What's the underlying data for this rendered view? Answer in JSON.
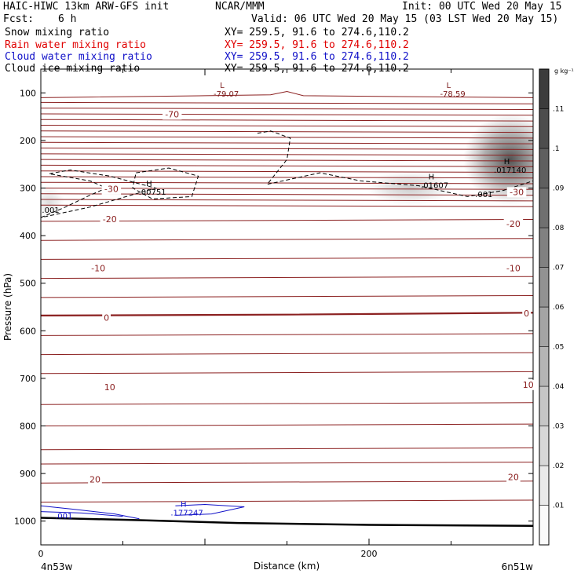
{
  "header": {
    "model": "HAIC-HIWC 13km ARW-GFS init",
    "org": "NCAR/MMM",
    "init": "Init: 00 UTC Wed 20 May 15",
    "fcst_label": "Fcst:",
    "fcst_value": "6 h",
    "valid": "Valid: 06 UTC Wed 20 May 15 (03 LST Wed 20 May 15)",
    "fields": [
      {
        "name": "Snow mixing ratio",
        "xy": "XY= 259.5, 91.6 to 274.6,110.2",
        "color": "#000000"
      },
      {
        "name": "Rain water mixing ratio",
        "xy": "XY= 259.5, 91.6 to 274.6,110.2",
        "color": "#e00000"
      },
      {
        "name": "Cloud water mixing ratio",
        "xy": "XY= 259.5, 91.6 to 274.6,110.2",
        "color": "#1010c8"
      },
      {
        "name": "Cloud ice mixing ratio",
        "xy": "XY= 259.5, 91.6 to 274.6,110.2",
        "color": "#000000"
      }
    ]
  },
  "chart_data": {
    "type": "heatmap",
    "xlabel": "Distance (km)",
    "ylabel": "Pressure (hPa)",
    "xlim": [
      0,
      300
    ],
    "ylim": [
      1050,
      50
    ],
    "x_ticks": [
      0,
      200
    ],
    "y_ticks": [
      100,
      200,
      300,
      400,
      500,
      600,
      700,
      800,
      900,
      1000
    ],
    "x_endpoints": {
      "left": "4n53w",
      "right": "6n51w"
    },
    "colorbar": {
      "unit": "g kg⁻¹",
      "ticks": [
        ".01",
        ".02",
        ".03",
        ".04",
        ".05",
        ".06",
        ".07",
        ".08",
        ".09",
        ".1",
        ".11"
      ],
      "max": 0.12
    },
    "temperature_contour_labels": [
      {
        "text": "-70",
        "x": 80,
        "p": 145
      },
      {
        "text": "-30",
        "x": 43,
        "p": 302
      },
      {
        "text": "-30",
        "x": 290,
        "p": 308
      },
      {
        "text": "-20",
        "x": 42,
        "p": 365
      },
      {
        "text": "-20",
        "x": 288,
        "p": 375
      },
      {
        "text": "-10",
        "x": 35,
        "p": 468
      },
      {
        "text": "-10",
        "x": 288,
        "p": 468
      },
      {
        "text": "0",
        "x": 40,
        "p": 572
      },
      {
        "text": "0",
        "x": 296,
        "p": 563
      },
      {
        "text": "10",
        "x": 42,
        "p": 718
      },
      {
        "text": "10",
        "x": 297,
        "p": 713
      },
      {
        "text": "20",
        "x": 33,
        "p": 912
      },
      {
        "text": "20",
        "x": 288,
        "p": 907
      }
    ],
    "extrema": [
      {
        "kind": "L",
        "value": "-79.07",
        "x": 113,
        "p": 90,
        "color": "#7a1a1a"
      },
      {
        "kind": "L",
        "value": "-78.59",
        "x": 251,
        "p": 90,
        "color": "#7a1a1a"
      },
      {
        "kind": "H",
        "value": ".00751",
        "x": 68,
        "p": 296,
        "color": "#000000"
      },
      {
        "kind": "H",
        "value": ".01607",
        "x": 240,
        "p": 282,
        "color": "#000000"
      },
      {
        "kind": "H",
        "value": ".017140",
        "x": 286,
        "p": 250,
        "color": "#000000"
      },
      {
        "kind": "H",
        "value": ".177247",
        "x": 89,
        "p": 970,
        "color": "#1010c8"
      }
    ],
    "contour_value_labels": [
      {
        "text": ".001",
        "x": 6,
        "p": 345,
        "color": "#000000"
      },
      {
        "text": ".001",
        "x": 270,
        "p": 312,
        "color": "#000000"
      },
      {
        "text": ".001",
        "x": 14,
        "p": 988,
        "color": "#1010c8"
      }
    ],
    "snow_maxima": [
      {
        "x": 286,
        "p": 240,
        "max": 0.115
      },
      {
        "x": 225,
        "p": 300,
        "max": 0.03
      },
      {
        "x": 5,
        "p": 330,
        "max": 0.02
      }
    ]
  }
}
